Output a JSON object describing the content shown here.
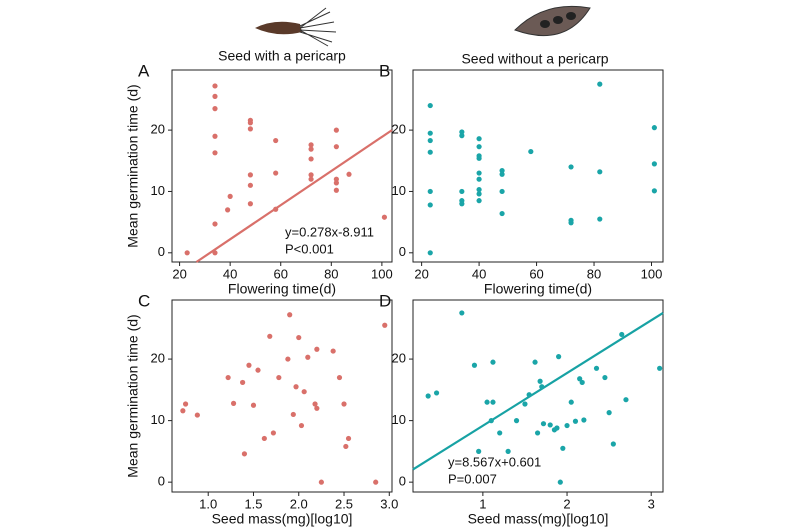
{
  "chart_data": [
    {
      "type": "scatter",
      "title": "Seed with a pericarp",
      "label": "A",
      "xlabel": "Flowering time(d)",
      "ylabel": "Mean germination time (d)",
      "color": "#d9706a",
      "x": [
        23,
        34,
        34,
        34,
        34,
        34,
        34,
        34,
        39,
        40,
        48,
        48,
        48,
        48,
        48,
        48,
        58,
        58,
        58,
        72,
        72,
        72,
        72,
        72,
        82,
        82,
        82,
        82,
        82,
        87,
        101
      ],
      "values": [
        0,
        27.2,
        25.5,
        23.5,
        19,
        16.3,
        4.7,
        0,
        7,
        9.2,
        21.6,
        21.2,
        20.2,
        12.7,
        11,
        8,
        18.3,
        13,
        7.1,
        17.6,
        16.9,
        15.3,
        12.7,
        12,
        20,
        17.3,
        12,
        11.4,
        10.2,
        12.8,
        5.8
      ],
      "xlim": [
        17,
        104
      ],
      "xticks": [
        20,
        40,
        60,
        80,
        100
      ],
      "ylim": [
        -1.5,
        29.8
      ],
      "yticks": [
        0,
        10,
        20
      ],
      "trendline": {
        "slope": 0.278,
        "intercept": -8.911,
        "color": "#d9706a"
      },
      "annotations": [
        "y=0.278x-8.911",
        "P<0.001"
      ]
    },
    {
      "type": "scatter",
      "title": "Seed without a pericarp",
      "label": "B",
      "xlabel": "Flowering time(d)",
      "color": "#1aa5a8",
      "x": [
        23,
        23,
        23,
        23,
        23,
        23,
        23,
        34,
        34,
        34,
        34,
        34,
        40,
        40,
        40,
        40,
        40,
        40,
        40,
        40,
        40,
        48,
        48,
        48,
        48,
        58,
        72,
        72,
        72,
        82,
        82,
        82,
        101,
        101,
        101
      ],
      "values": [
        24,
        19.5,
        18.3,
        16.4,
        10,
        7.8,
        0,
        19.7,
        19.1,
        10,
        8.5,
        8,
        18.6,
        17.3,
        15.8,
        15.4,
        13,
        12,
        10.3,
        9.6,
        8.5,
        13.4,
        12.8,
        10,
        6.4,
        16.5,
        14,
        5.3,
        4.9,
        27.5,
        13.2,
        5.5,
        20.4,
        14.5,
        10.1
      ],
      "xlim": [
        17,
        104
      ],
      "xticks": [
        20,
        40,
        60,
        80,
        100
      ],
      "ylim": [
        -1.5,
        29.8
      ],
      "yticks": [
        0,
        10,
        20
      ]
    },
    {
      "type": "scatter",
      "label": "C",
      "xlabel": "Seed mass(mg)[log10]",
      "ylabel": "Mean germination time (d)",
      "color": "#d9706a",
      "x": [
        0.72,
        0.75,
        0.88,
        1.22,
        1.28,
        1.38,
        1.4,
        1.45,
        1.5,
        1.55,
        1.62,
        1.68,
        1.72,
        1.78,
        1.88,
        1.9,
        1.94,
        1.97,
        2.0,
        2.03,
        2.06,
        2.1,
        2.18,
        2.2,
        2.2,
        2.25,
        2.38,
        2.45,
        2.5,
        2.52,
        2.55,
        2.85,
        2.95
      ],
      "values": [
        11.6,
        12.7,
        10.9,
        17,
        12.8,
        16.2,
        4.6,
        19,
        12.5,
        18.2,
        7.1,
        23.7,
        8,
        17,
        20,
        27.2,
        11,
        15.5,
        23.5,
        9.2,
        14.7,
        20.3,
        12.7,
        12,
        21.6,
        0,
        21.3,
        17,
        12.7,
        5.8,
        7.1,
        0,
        25.5
      ],
      "xlim": [
        0.6,
        3.03
      ],
      "xticks": [
        {
          "value": 1,
          "label": "1.0"
        },
        1.5,
        {
          "value": 2,
          "label": "2.0"
        },
        2.5,
        {
          "value": 3,
          "label": "3.0"
        }
      ],
      "ylim": [
        -1.6,
        29.6
      ],
      "yticks": [
        0,
        10,
        20
      ]
    },
    {
      "type": "scatter",
      "label": "D",
      "xlabel": "Seed mass(mg)[log10]",
      "color": "#1aa5a8",
      "x": [
        0.35,
        0.45,
        0.75,
        0.9,
        0.95,
        1.05,
        1.1,
        1.12,
        1.12,
        1.2,
        1.3,
        1.4,
        1.5,
        1.55,
        1.62,
        1.65,
        1.68,
        1.7,
        1.72,
        1.8,
        1.85,
        1.88,
        1.9,
        1.92,
        1.95,
        2.0,
        2.05,
        2.1,
        2.15,
        2.18,
        2.2,
        2.35,
        2.45,
        2.5,
        2.55,
        2.65,
        2.7,
        3.1
      ],
      "values": [
        14,
        14.5,
        27.5,
        19,
        5,
        13,
        10,
        19.5,
        13,
        8,
        5,
        10,
        12.7,
        14.2,
        19.5,
        8,
        16.4,
        15.5,
        9.5,
        9.3,
        8.5,
        8.8,
        20.4,
        0,
        5.5,
        9.2,
        13,
        9.9,
        16.8,
        16.2,
        10.1,
        18.5,
        17,
        11.3,
        6.2,
        24,
        13.4,
        18.5
      ],
      "xlim": [
        0.17,
        3.14
      ],
      "xticks": [
        1,
        2,
        3
      ],
      "ylim": [
        -1.6,
        29.6
      ],
      "yticks": [
        0,
        10,
        20
      ],
      "trendline": {
        "slope": 8.567,
        "intercept": 0.601,
        "color": "#17a2a4"
      },
      "annotations": [
        "y=8.567x+0.601",
        "P=0.007"
      ]
    }
  ]
}
